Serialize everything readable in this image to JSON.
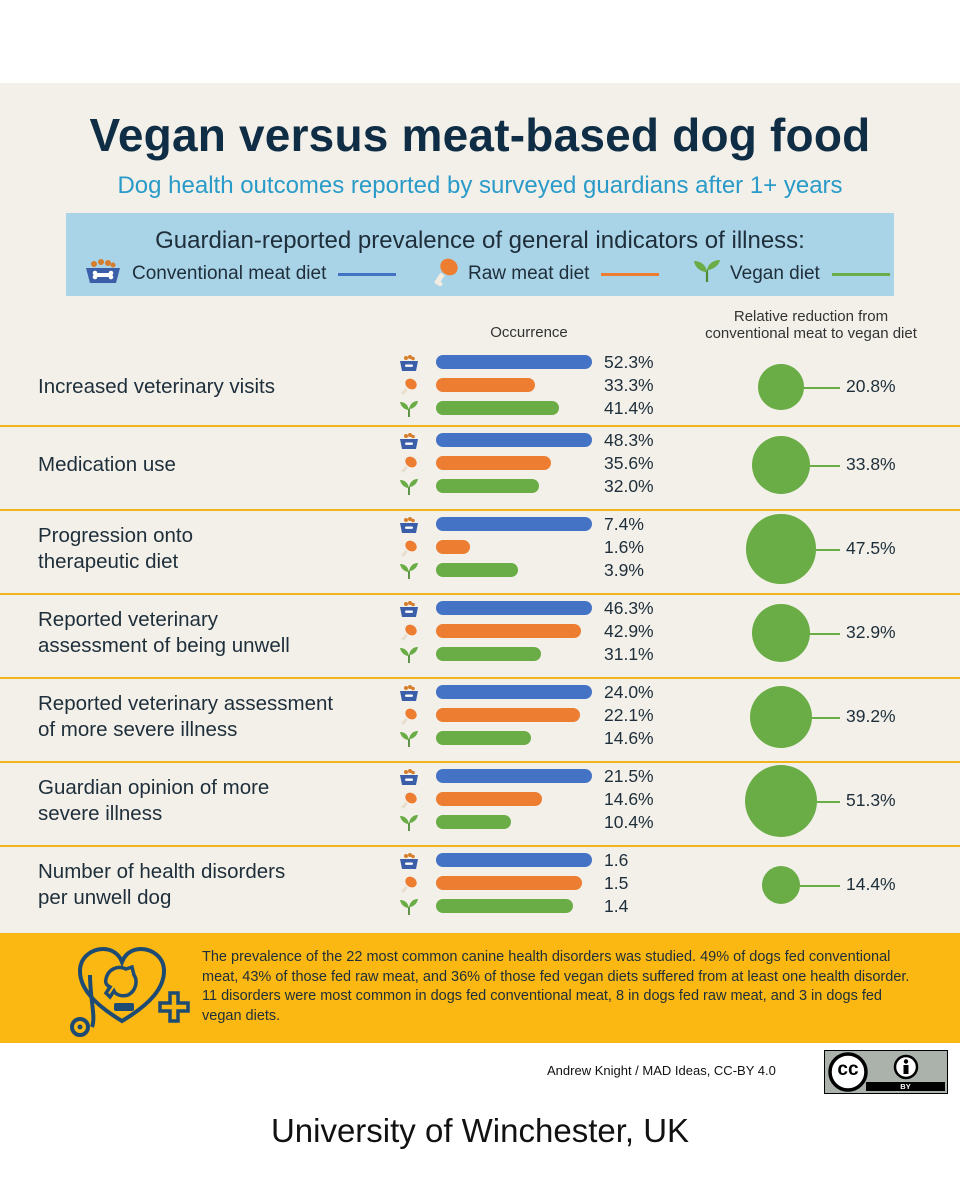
{
  "header": {
    "title": "Vegan versus meat-based dog food",
    "subtitle": "Dog health outcomes reported by surveyed guardians after 1+ years"
  },
  "legend": {
    "title": "Guardian-reported prevalence of general indicators of illness:",
    "items": [
      {
        "label": "Conventional meat diet",
        "color": "#4472c4",
        "icon": "dog-bowl-icon"
      },
      {
        "label": "Raw meat diet",
        "color": "#ed7d31",
        "icon": "drumstick-icon"
      },
      {
        "label": "Vegan diet",
        "color": "#6aac45",
        "icon": "sprout-icon"
      }
    ]
  },
  "columns": {
    "occurrence": "Occurrence",
    "reduction_line1": "Relative reduction from",
    "reduction_line2": "conventional meat to vegan diet"
  },
  "chart_data": {
    "type": "bar",
    "categories": [
      "Increased veterinary visits",
      "Medication use",
      "Progression onto therapeutic diet",
      "Reported veterinary assessment of being unwell",
      "Reported veterinary assessment of more severe illness",
      "Guardian opinion of more severe illness",
      "Number of health disorders per unwell dog"
    ],
    "series": [
      {
        "name": "Conventional meat diet",
        "color": "#4472c4",
        "values": [
          52.3,
          48.3,
          7.4,
          46.3,
          24.0,
          21.5,
          1.6
        ]
      },
      {
        "name": "Raw meat diet",
        "color": "#ed7d31",
        "values": [
          33.3,
          35.6,
          1.6,
          42.9,
          22.1,
          14.6,
          1.5
        ]
      },
      {
        "name": "Vegan diet",
        "color": "#6aac45",
        "values": [
          41.4,
          32.0,
          3.9,
          31.1,
          14.6,
          10.4,
          1.4
        ]
      }
    ],
    "rows": [
      {
        "label_lines": [
          "Increased veterinary visits"
        ],
        "values": [
          "52.3%",
          "33.3%",
          "41.4%"
        ],
        "reduction": "20.8%"
      },
      {
        "label_lines": [
          "Medication use"
        ],
        "values": [
          "48.3%",
          "35.6%",
          "32.0%"
        ],
        "reduction": "33.8%"
      },
      {
        "label_lines": [
          "Progression onto",
          "therapeutic diet"
        ],
        "values": [
          "7.4%",
          "1.6%",
          "3.9%"
        ],
        "reduction": "47.5%"
      },
      {
        "label_lines": [
          "Reported veterinary",
          "assessment of being unwell"
        ],
        "values": [
          "46.3%",
          "42.9%",
          "31.1%"
        ],
        "reduction": "32.9%"
      },
      {
        "label_lines": [
          "Reported veterinary assessment",
          "of more severe illness"
        ],
        "values": [
          "24.0%",
          "22.1%",
          "14.6%"
        ],
        "reduction": "39.2%"
      },
      {
        "label_lines": [
          "Guardian opinion of more",
          "severe illness"
        ],
        "values": [
          "21.5%",
          "14.6%",
          "10.4%"
        ],
        "reduction": "51.3%"
      },
      {
        "label_lines": [
          "Number of health disorders",
          "per unwell dog"
        ],
        "values": [
          "1.6",
          "1.5",
          "1.4"
        ],
        "reduction": "14.4%"
      }
    ],
    "reduction_values": [
      20.8,
      33.8,
      47.5,
      32.9,
      39.2,
      51.3,
      14.4
    ]
  },
  "footer": {
    "text": "The prevalence of the 22 most common canine health disorders was studied. 49% of dogs fed conventional meat, 43% of those fed raw meat, and 36% of those fed vegan diets suffered from at least one health disorder. 11 disorders were most common in dogs fed conventional meat, 8 in dogs fed raw meat, and 3 in dogs fed vegan diets.",
    "icon": "heart-stethoscope-icon"
  },
  "credit": "Andrew Knight / MAD Ideas, CC-BY 4.0",
  "license_badge": {
    "left": "cc",
    "right": "BY"
  },
  "institution": "University of Winchester, UK"
}
